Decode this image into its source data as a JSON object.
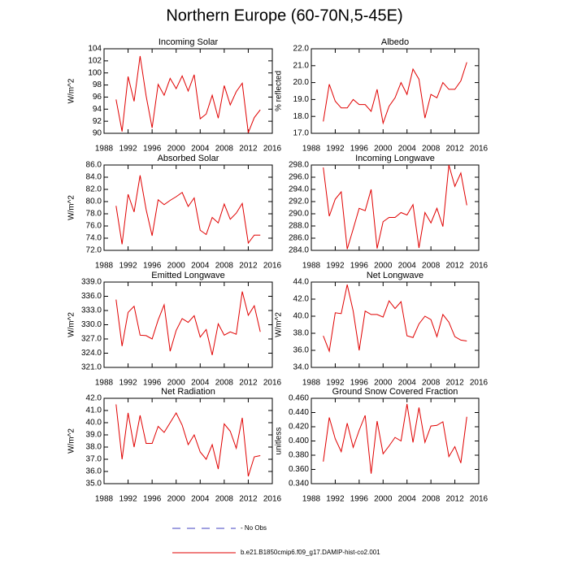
{
  "title": "Northern Europe (60-70N,5-45E)",
  "legend": [
    {
      "label": "- No Obs",
      "color": "#4040c0",
      "dashed": true
    },
    {
      "label": "b.e21.B1850cmip6.f09_g17.DAMIP-hist-co2.001",
      "color": "#e00000",
      "dashed": false
    }
  ],
  "chart_data": [
    {
      "type": "line",
      "title": "Incoming Solar",
      "ylabel": "W/m^2",
      "color": "#e00000",
      "x": [
        1990,
        1991,
        1992,
        1993,
        1994,
        1995,
        1996,
        1997,
        1998,
        1999,
        2000,
        2001,
        2002,
        2003,
        2004,
        2005,
        2006,
        2007,
        2008,
        2009,
        2010,
        2011,
        2012,
        2013,
        2014
      ],
      "values": [
        95.6,
        90.3,
        99.4,
        95.3,
        102.8,
        96.2,
        90.9,
        98.1,
        96.3,
        99.1,
        97.4,
        99.5,
        97.0,
        99.7,
        92.4,
        93.2,
        96.3,
        92.5,
        97.9,
        94.7,
        96.9,
        98.3,
        90.1,
        92.6,
        93.9
      ],
      "xlim": [
        1988,
        2016
      ],
      "xticks": [
        1988,
        1992,
        1996,
        2000,
        2004,
        2008,
        2012,
        2016
      ],
      "ylim": [
        90,
        104
      ],
      "yticks": [
        90,
        92,
        94,
        96,
        98,
        100,
        102,
        104
      ]
    },
    {
      "type": "line",
      "title": "Albedo",
      "ylabel": "% reflected",
      "color": "#e00000",
      "x": [
        1990,
        1991,
        1992,
        1993,
        1994,
        1995,
        1996,
        1997,
        1998,
        1999,
        2000,
        2001,
        2002,
        2003,
        2004,
        2005,
        2006,
        2007,
        2008,
        2009,
        2010,
        2011,
        2012,
        2013,
        2014
      ],
      "values": [
        17.7,
        19.9,
        18.9,
        18.5,
        18.5,
        19.0,
        18.7,
        18.7,
        18.3,
        19.6,
        17.6,
        18.6,
        19.1,
        20.0,
        19.3,
        20.8,
        20.2,
        17.9,
        19.3,
        19.1,
        20.0,
        19.6,
        19.6,
        20.1,
        21.2
      ],
      "xlim": [
        1988,
        2016
      ],
      "xticks": [
        1988,
        1992,
        1996,
        2000,
        2004,
        2008,
        2012,
        2016
      ],
      "ylim": [
        17,
        22
      ],
      "yticks": [
        {
          "value": 17,
          "label": "17.0"
        },
        {
          "value": 18,
          "label": "18.0"
        },
        {
          "value": 19,
          "label": "19.0"
        },
        {
          "value": 20,
          "label": "20.0"
        },
        {
          "value": 21,
          "label": "21.0"
        },
        {
          "value": 22,
          "label": "22.0"
        }
      ]
    },
    {
      "type": "line",
      "title": "Absorbed Solar",
      "ylabel": "W/m^2",
      "color": "#e00000",
      "x": [
        1990,
        1991,
        1992,
        1993,
        1994,
        1995,
        1996,
        1997,
        1998,
        1999,
        2000,
        2001,
        2002,
        2003,
        2004,
        2005,
        2006,
        2007,
        2008,
        2009,
        2010,
        2011,
        2012,
        2013,
        2014
      ],
      "values": [
        79.3,
        73.0,
        81.2,
        78.3,
        84.3,
        78.7,
        74.4,
        80.3,
        79.5,
        80.2,
        80.8,
        81.5,
        79.2,
        80.6,
        75.3,
        74.6,
        77.4,
        76.5,
        79.6,
        77.1,
        78.1,
        79.7,
        73.2,
        74.5,
        74.5
      ],
      "xlim": [
        1988,
        2016
      ],
      "xticks": [
        1988,
        1992,
        1996,
        2000,
        2004,
        2008,
        2012,
        2016
      ],
      "ylim": [
        72,
        86
      ],
      "yticks": [
        {
          "value": 72,
          "label": "72.0"
        },
        {
          "value": 74,
          "label": "74.0"
        },
        {
          "value": 76,
          "label": "76.0"
        },
        {
          "value": 78,
          "label": "78.0"
        },
        {
          "value": 80,
          "label": "80.0"
        },
        {
          "value": 82,
          "label": "82.0"
        },
        {
          "value": 84,
          "label": "84.0"
        },
        {
          "value": 86,
          "label": "86.0"
        }
      ]
    },
    {
      "type": "line",
      "title": "Incoming Longwave",
      "ylabel": "",
      "color": "#e00000",
      "x": [
        1990,
        1991,
        1992,
        1993,
        1994,
        1995,
        1996,
        1997,
        1998,
        1999,
        2000,
        2001,
        2002,
        2003,
        2004,
        2005,
        2006,
        2007,
        2008,
        2009,
        2010,
        2011,
        2012,
        2013,
        2014
      ],
      "values": [
        297.6,
        289.6,
        292.4,
        293.6,
        284.2,
        287.5,
        290.9,
        290.5,
        294.0,
        284.3,
        288.7,
        289.4,
        289.4,
        290.2,
        289.8,
        291.5,
        284.4,
        290.2,
        288.5,
        290.9,
        287.9,
        298.0,
        294.5,
        296.7,
        291.4
      ],
      "xlim": [
        1988,
        2016
      ],
      "xticks": [
        1988,
        1992,
        1996,
        2000,
        2004,
        2008,
        2012,
        2016
      ],
      "ylim": [
        284,
        298
      ],
      "yticks": [
        {
          "value": 284,
          "label": "284.0"
        },
        {
          "value": 286,
          "label": "286.0"
        },
        {
          "value": 288,
          "label": "288.0"
        },
        {
          "value": 290,
          "label": "290.0"
        },
        {
          "value": 292,
          "label": "292.0"
        },
        {
          "value": 294,
          "label": "294.0"
        },
        {
          "value": 296,
          "label": "296.0"
        },
        {
          "value": 298,
          "label": "298.0"
        }
      ]
    },
    {
      "type": "line",
      "title": "Emitted Longwave",
      "ylabel": "W/m^2",
      "color": "#e00000",
      "x": [
        1990,
        1991,
        1992,
        1993,
        1994,
        1995,
        1996,
        1997,
        1998,
        1999,
        2000,
        2001,
        2002,
        2003,
        2004,
        2005,
        2006,
        2007,
        2008,
        2009,
        2010,
        2011,
        2012,
        2013,
        2014
      ],
      "values": [
        335.3,
        325.5,
        332.6,
        333.9,
        327.8,
        327.7,
        327.0,
        331.0,
        334.2,
        324.4,
        328.8,
        331.3,
        330.5,
        331.9,
        327.4,
        329.0,
        323.6,
        330.2,
        327.8,
        328.5,
        328.0,
        337.0,
        332.0,
        334.0,
        328.5
      ],
      "xlim": [
        1988,
        2016
      ],
      "xticks": [
        1988,
        1992,
        1996,
        2000,
        2004,
        2008,
        2012,
        2016
      ],
      "ylim": [
        321,
        339
      ],
      "yticks": [
        {
          "value": 321,
          "label": "321.0"
        },
        {
          "value": 324,
          "label": "324.0"
        },
        {
          "value": 327,
          "label": "327.0"
        },
        {
          "value": 330,
          "label": "330.0"
        },
        {
          "value": 333,
          "label": "333.0"
        },
        {
          "value": 336,
          "label": "336.0"
        },
        {
          "value": 339,
          "label": "339.0"
        }
      ]
    },
    {
      "type": "line",
      "title": "Net Longwave",
      "ylabel": "W/m^2",
      "color": "#e00000",
      "x": [
        1990,
        1991,
        1992,
        1993,
        1994,
        1995,
        1996,
        1997,
        1998,
        1999,
        2000,
        2001,
        2002,
        2003,
        2004,
        2005,
        2006,
        2007,
        2008,
        2009,
        2010,
        2011,
        2012,
        2013,
        2014
      ],
      "values": [
        37.7,
        35.9,
        40.4,
        40.3,
        43.7,
        40.6,
        36.0,
        40.6,
        40.2,
        40.2,
        39.9,
        41.8,
        40.9,
        41.7,
        37.7,
        37.5,
        39.1,
        40.0,
        39.6,
        37.6,
        40.2,
        39.3,
        37.6,
        37.2,
        37.1
      ],
      "xlim": [
        1988,
        2016
      ],
      "xticks": [
        1988,
        1992,
        1996,
        2000,
        2004,
        2008,
        2012,
        2016
      ],
      "ylim": [
        34,
        44
      ],
      "yticks": [
        {
          "value": 34,
          "label": "34.0"
        },
        {
          "value": 36,
          "label": "36.0"
        },
        {
          "value": 38,
          "label": "38.0"
        },
        {
          "value": 40,
          "label": "40.0"
        },
        {
          "value": 42,
          "label": "42.0"
        },
        {
          "value": 44,
          "label": "44.0"
        }
      ]
    },
    {
      "type": "line",
      "title": "Net Radiation",
      "ylabel": "W/m^2",
      "color": "#e00000",
      "x": [
        1990,
        1991,
        1992,
        1993,
        1994,
        1995,
        1996,
        1997,
        1998,
        1999,
        2000,
        2001,
        2002,
        2003,
        2004,
        2005,
        2006,
        2007,
        2008,
        2009,
        2010,
        2011,
        2012,
        2013,
        2014
      ],
      "values": [
        41.5,
        37.0,
        40.8,
        38.0,
        40.6,
        38.3,
        38.3,
        39.7,
        39.2,
        40.0,
        40.8,
        39.8,
        38.2,
        39.0,
        37.6,
        37.0,
        38.2,
        36.2,
        39.9,
        39.3,
        37.9,
        40.4,
        35.6,
        37.2,
        37.3
      ],
      "xlim": [
        1988,
        2016
      ],
      "xticks": [
        1988,
        1992,
        1996,
        2000,
        2004,
        2008,
        2012,
        2016
      ],
      "ylim": [
        35,
        42
      ],
      "yticks": [
        {
          "value": 35,
          "label": "35.0"
        },
        {
          "value": 36,
          "label": "36.0"
        },
        {
          "value": 37,
          "label": "37.0"
        },
        {
          "value": 38,
          "label": "38.0"
        },
        {
          "value": 39,
          "label": "39.0"
        },
        {
          "value": 40,
          "label": "40.0"
        },
        {
          "value": 41,
          "label": "41.0"
        },
        {
          "value": 42,
          "label": "42.0"
        }
      ]
    },
    {
      "type": "line",
      "title": "Ground Snow Covered Fraction",
      "ylabel": "unitless",
      "color": "#e00000",
      "x": [
        1990,
        1991,
        1992,
        1993,
        1994,
        1995,
        1996,
        1997,
        1998,
        1999,
        2000,
        2001,
        2002,
        2003,
        2004,
        2005,
        2006,
        2007,
        2008,
        2009,
        2010,
        2011,
        2012,
        2013,
        2014
      ],
      "values": [
        0.371,
        0.433,
        0.403,
        0.385,
        0.425,
        0.391,
        0.415,
        0.436,
        0.354,
        0.428,
        0.382,
        0.393,
        0.405,
        0.4,
        0.452,
        0.398,
        0.447,
        0.398,
        0.421,
        0.422,
        0.427,
        0.378,
        0.392,
        0.369,
        0.434
      ],
      "xlim": [
        1988,
        2016
      ],
      "xticks": [
        1988,
        1992,
        1996,
        2000,
        2004,
        2008,
        2012,
        2016
      ],
      "ylim": [
        0.34,
        0.46
      ],
      "yticks": [
        {
          "value": 0.34,
          "label": "0.340"
        },
        {
          "value": 0.36,
          "label": "0.360"
        },
        {
          "value": 0.38,
          "label": "0.380"
        },
        {
          "value": 0.4,
          "label": "0.400"
        },
        {
          "value": 0.42,
          "label": "0.420"
        },
        {
          "value": 0.44,
          "label": "0.440"
        },
        {
          "value": 0.46,
          "label": "0.460"
        }
      ]
    }
  ]
}
